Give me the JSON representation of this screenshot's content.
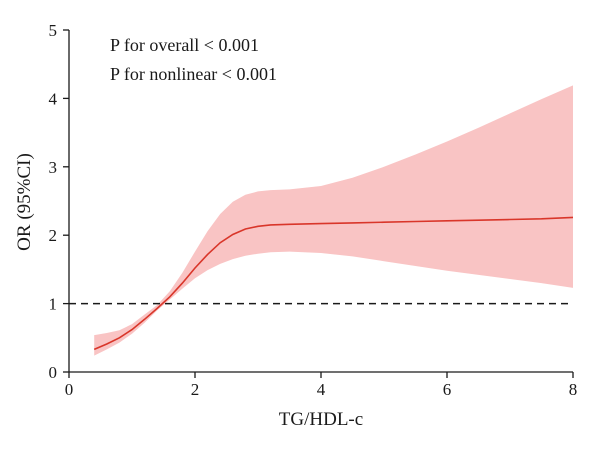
{
  "chart_data": {
    "type": "line",
    "title": "",
    "xlabel": "TG/HDL-c",
    "ylabel": "OR (95%CI)",
    "xlim": [
      0,
      8
    ],
    "ylim": [
      0,
      5
    ],
    "xticks": [
      0,
      2,
      4,
      6,
      8
    ],
    "yticks": [
      0,
      1,
      2,
      3,
      4,
      5
    ],
    "grid": false,
    "annotations": [
      "P for overall < 0.001",
      "P for nonlinear < 0.001"
    ],
    "reference_line": {
      "y": 1,
      "style": "dashed"
    },
    "series": [
      {
        "x": [
          0.4,
          0.6,
          0.8,
          1.0,
          1.2,
          1.4,
          1.6,
          1.8,
          2.0,
          2.2,
          2.4,
          2.6,
          2.8,
          3.0,
          3.2,
          3.5,
          4.0,
          4.5,
          5.0,
          5.5,
          6.0,
          6.5,
          7.0,
          7.5,
          8.0
        ],
        "y": [
          0.33,
          0.41,
          0.5,
          0.62,
          0.77,
          0.93,
          1.1,
          1.3,
          1.52,
          1.72,
          1.89,
          2.01,
          2.09,
          2.13,
          2.15,
          2.16,
          2.17,
          2.18,
          2.19,
          2.2,
          2.21,
          2.22,
          2.23,
          2.24,
          2.26
        ],
        "lower": [
          0.24,
          0.33,
          0.43,
          0.56,
          0.72,
          0.9,
          1.06,
          1.22,
          1.37,
          1.49,
          1.58,
          1.65,
          1.7,
          1.73,
          1.75,
          1.76,
          1.74,
          1.69,
          1.62,
          1.55,
          1.48,
          1.42,
          1.36,
          1.3,
          1.23
        ],
        "upper": [
          0.54,
          0.57,
          0.61,
          0.7,
          0.84,
          0.98,
          1.18,
          1.45,
          1.76,
          2.06,
          2.31,
          2.49,
          2.59,
          2.64,
          2.66,
          2.67,
          2.72,
          2.84,
          3.0,
          3.18,
          3.37,
          3.57,
          3.78,
          3.99,
          4.19
        ]
      }
    ]
  },
  "colors": {
    "curve": "#d9362a",
    "band": "#f9c4c4",
    "reference": "#1a1a1a",
    "axis": "#1a1a1a"
  }
}
